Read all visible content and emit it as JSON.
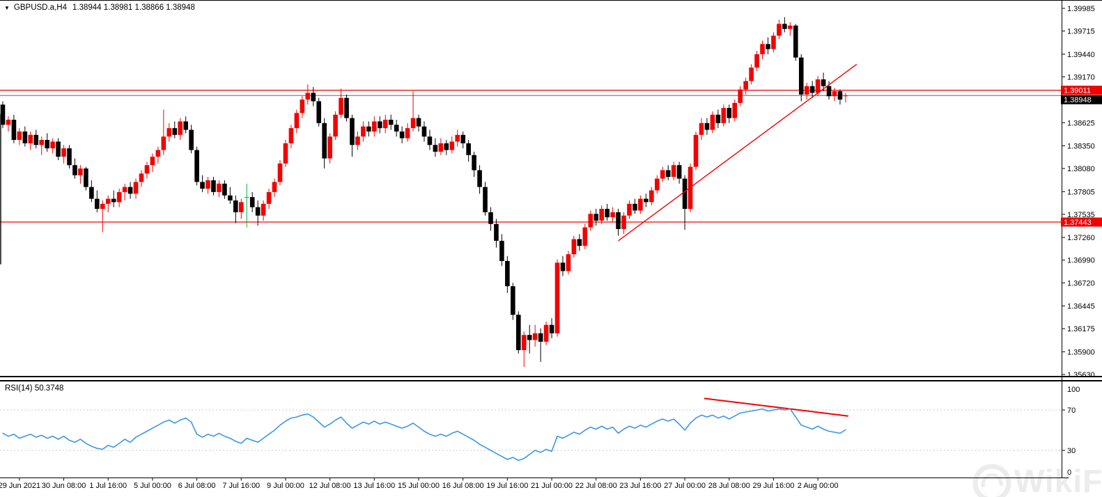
{
  "title_bar": {
    "dropdown_icon": "▼",
    "symbol": "GBPUSD.a,H4",
    "ohlc": "1.38944 1.38981 1.38866 1.38948"
  },
  "rsi_panel": {
    "label": "RSI(14) 50.3748"
  },
  "watermark": {
    "text": "WikiFX"
  },
  "colors": {
    "bull": "#f40000",
    "bear": "#000000",
    "special_green": "#00b32c",
    "level_red": "#f40000",
    "current_price_line": "#808080",
    "current_price_badge": "#000000",
    "badge_text": "#ffffff",
    "rsi_line": "#3d95e8",
    "rsi_grid": "#c8c8c8",
    "trend": "#f40000",
    "axis_text": "#000000",
    "border": "#000000",
    "watermark": "#ececec"
  },
  "chart_data": {
    "type": "candlestick",
    "symbol": "GBPUSD.a",
    "timeframe": "H4",
    "last_ohlc": {
      "open": "1.38944",
      "high": "1.38981",
      "low": "1.38866",
      "close": "1.38948"
    },
    "price_axis_ticks": [
      "1.39985",
      "1.39715",
      "1.39440",
      "1.39170",
      "1.38895",
      "1.38625",
      "1.38350",
      "1.38080",
      "1.37805",
      "1.37535",
      "1.37260",
      "1.36990",
      "1.36720",
      "1.36445",
      "1.36175",
      "1.35900",
      "1.35630"
    ],
    "x_axis_labels": [
      {
        "bar": 3,
        "text": "29 Jun 2021"
      },
      {
        "bar": 11,
        "text": "30 Jun 08:00"
      },
      {
        "bar": 19,
        "text": "1 Jul 16:00"
      },
      {
        "bar": 27,
        "text": "5 Jul 00:00"
      },
      {
        "bar": 35,
        "text": "6 Jul 08:00"
      },
      {
        "bar": 43,
        "text": "7 Jul 16:00"
      },
      {
        "bar": 51,
        "text": "9 Jul 00:00"
      },
      {
        "bar": 59,
        "text": "12 Jul 08:00"
      },
      {
        "bar": 67,
        "text": "13 Jul 16:00"
      },
      {
        "bar": 75,
        "text": "15 Jul 00:00"
      },
      {
        "bar": 83,
        "text": "16 Jul 08:00"
      },
      {
        "bar": 91,
        "text": "19 Jul 16:00"
      },
      {
        "bar": 99,
        "text": "21 Jul 00:00"
      },
      {
        "bar": 107,
        "text": "22 Jul 08:00"
      },
      {
        "bar": 115,
        "text": "23 Jul 16:00"
      },
      {
        "bar": 123,
        "text": "27 Jul 00:00"
      },
      {
        "bar": 131,
        "text": "28 Jul 08:00"
      },
      {
        "bar": 139,
        "text": "29 Jul 16:00"
      },
      {
        "bar": 147,
        "text": "2 Aug 00:00"
      }
    ],
    "green_candle_index": 44,
    "left_edge_wick": {
      "price_top": 1.3873,
      "price_bottom": 1.3694
    },
    "levels": [
      {
        "name": "resistance",
        "price": 1.39011,
        "label": "1.39011",
        "color": "#f40000",
        "badge": true,
        "badge_fill": "#f40000",
        "badge_dy": 0
      },
      {
        "name": "current-price",
        "price": 1.38948,
        "label": "1.38948",
        "color": "#808080",
        "badge": true,
        "badge_fill": "#000000",
        "badge_dy": 6
      },
      {
        "name": "support",
        "price": 1.37443,
        "label": "1.37443",
        "color": "#f40000",
        "badge": true,
        "badge_fill": "#f40000",
        "badge_dy": 0
      }
    ],
    "trendlines": [
      {
        "panel": "main",
        "x1_bar": 111,
        "y1_price": 1.3722,
        "x2_bar": 154,
        "y2_price": 1.3932,
        "color": "#f40000",
        "width": 1.4
      },
      {
        "panel": "rsi",
        "x1_bar": 126.5,
        "y1_value": 81.5,
        "x2_bar": 152.5,
        "y2_value": 64,
        "color": "#f40000",
        "width": 2
      }
    ],
    "candles": [
      [
        1.3884,
        1.3888,
        1.3856,
        1.386
      ],
      [
        1.386,
        1.387,
        1.3852,
        1.3866
      ],
      [
        1.3866,
        1.3872,
        1.3838,
        1.3842
      ],
      [
        1.3842,
        1.3856,
        1.3836,
        1.3852
      ],
      [
        1.3852,
        1.3858,
        1.3834,
        1.3838
      ],
      [
        1.3838,
        1.3852,
        1.383,
        1.3848
      ],
      [
        1.3848,
        1.3854,
        1.3832,
        1.3836
      ],
      [
        1.3836,
        1.3846,
        1.3824,
        1.3842
      ],
      [
        1.3842,
        1.385,
        1.3828,
        1.3832
      ],
      [
        1.3832,
        1.3844,
        1.3826,
        1.384
      ],
      [
        1.384,
        1.3844,
        1.3818,
        1.3822
      ],
      [
        1.3822,
        1.3836,
        1.3814,
        1.3832
      ],
      [
        1.3832,
        1.3836,
        1.3808,
        1.3812
      ],
      [
        1.3812,
        1.382,
        1.3796,
        1.38
      ],
      [
        1.38,
        1.3812,
        1.379,
        1.3808
      ],
      [
        1.3808,
        1.381,
        1.3782,
        1.3786
      ],
      [
        1.3786,
        1.3794,
        1.3768,
        1.3772
      ],
      [
        1.3772,
        1.3782,
        1.3756,
        1.376
      ],
      [
        1.376,
        1.377,
        1.3732,
        1.3766
      ],
      [
        1.3766,
        1.3776,
        1.3756,
        1.3772
      ],
      [
        1.3772,
        1.3782,
        1.3762,
        1.3768
      ],
      [
        1.3768,
        1.3784,
        1.3762,
        1.378
      ],
      [
        1.378,
        1.379,
        1.377,
        1.3786
      ],
      [
        1.3786,
        1.3792,
        1.3772,
        1.3778
      ],
      [
        1.3778,
        1.3796,
        1.3772,
        1.3792
      ],
      [
        1.3792,
        1.3806,
        1.3786,
        1.3802
      ],
      [
        1.3802,
        1.3816,
        1.3796,
        1.3812
      ],
      [
        1.3812,
        1.3826,
        1.3804,
        1.3822
      ],
      [
        1.3822,
        1.3834,
        1.3814,
        1.383
      ],
      [
        1.383,
        1.3878,
        1.3824,
        1.3846
      ],
      [
        1.3846,
        1.3862,
        1.384,
        1.3856
      ],
      [
        1.3856,
        1.3864,
        1.3844,
        1.3848
      ],
      [
        1.3848,
        1.3868,
        1.3842,
        1.3864
      ],
      [
        1.3864,
        1.387,
        1.385,
        1.3854
      ],
      [
        1.3854,
        1.386,
        1.3826,
        1.383
      ],
      [
        1.383,
        1.3834,
        1.3788,
        1.3792
      ],
      [
        1.3792,
        1.38,
        1.378,
        1.3784
      ],
      [
        1.3784,
        1.3798,
        1.3778,
        1.3794
      ],
      [
        1.3794,
        1.3798,
        1.3776,
        1.378
      ],
      [
        1.378,
        1.3794,
        1.3774,
        1.379
      ],
      [
        1.379,
        1.3794,
        1.3772,
        1.3776
      ],
      [
        1.3776,
        1.3786,
        1.3766,
        1.377
      ],
      [
        1.377,
        1.3776,
        1.3743,
        1.3756
      ],
      [
        1.3756,
        1.3772,
        1.3748,
        1.3768
      ],
      [
        1.3774,
        1.379,
        1.3738,
        1.3774
      ],
      [
        1.3774,
        1.378,
        1.3756,
        1.3762
      ],
      [
        1.3762,
        1.377,
        1.374,
        1.3752
      ],
      [
        1.3752,
        1.377,
        1.3746,
        1.3766
      ],
      [
        1.3766,
        1.3784,
        1.376,
        1.378
      ],
      [
        1.378,
        1.3796,
        1.3774,
        1.3792
      ],
      [
        1.3792,
        1.3818,
        1.3788,
        1.3814
      ],
      [
        1.3814,
        1.3842,
        1.381,
        1.3838
      ],
      [
        1.3838,
        1.386,
        1.3832,
        1.3856
      ],
      [
        1.3856,
        1.3878,
        1.385,
        1.3874
      ],
      [
        1.3874,
        1.3894,
        1.3868,
        1.389
      ],
      [
        1.389,
        1.3908,
        1.3884,
        1.3898
      ],
      [
        1.3898,
        1.3905,
        1.3882,
        1.3888
      ],
      [
        1.3888,
        1.3892,
        1.3858,
        1.3862
      ],
      [
        1.3862,
        1.3868,
        1.3808,
        1.382
      ],
      [
        1.382,
        1.385,
        1.3814,
        1.3846
      ],
      [
        1.3846,
        1.3876,
        1.3842,
        1.3872
      ],
      [
        1.3872,
        1.3903,
        1.3868,
        1.3892
      ],
      [
        1.3892,
        1.3896,
        1.3864,
        1.3868
      ],
      [
        1.3868,
        1.3872,
        1.3822,
        1.3836
      ],
      [
        1.3836,
        1.3852,
        1.383,
        1.3846
      ],
      [
        1.3846,
        1.3864,
        1.384,
        1.3858
      ],
      [
        1.3858,
        1.3864,
        1.3846,
        1.3852
      ],
      [
        1.3852,
        1.387,
        1.3846,
        1.3864
      ],
      [
        1.3864,
        1.387,
        1.385,
        1.3856
      ],
      [
        1.3856,
        1.3872,
        1.385,
        1.3866
      ],
      [
        1.3866,
        1.3872,
        1.3854,
        1.386
      ],
      [
        1.386,
        1.3866,
        1.3846,
        1.3852
      ],
      [
        1.3852,
        1.3858,
        1.3838,
        1.3844
      ],
      [
        1.3844,
        1.3862,
        1.384,
        1.3856
      ],
      [
        1.3856,
        1.39,
        1.3852,
        1.3868
      ],
      [
        1.3868,
        1.3872,
        1.3852,
        1.3858
      ],
      [
        1.3858,
        1.3864,
        1.384,
        1.3846
      ],
      [
        1.3846,
        1.3854,
        1.383,
        1.3836
      ],
      [
        1.3836,
        1.3844,
        1.3822,
        1.3828
      ],
      [
        1.3828,
        1.3844,
        1.3824,
        1.3838
      ],
      [
        1.3838,
        1.3842,
        1.3824,
        1.383
      ],
      [
        1.383,
        1.3846,
        1.3826,
        1.384
      ],
      [
        1.384,
        1.3854,
        1.3834,
        1.3848
      ],
      [
        1.3848,
        1.3852,
        1.3832,
        1.3838
      ],
      [
        1.3838,
        1.3842,
        1.3816,
        1.3824
      ],
      [
        1.3824,
        1.3828,
        1.3798,
        1.3806
      ],
      [
        1.3806,
        1.3812,
        1.3778,
        1.3786
      ],
      [
        1.3786,
        1.3792,
        1.3752,
        1.3756
      ],
      [
        1.3756,
        1.3762,
        1.3734,
        1.3742
      ],
      [
        1.3742,
        1.3748,
        1.3714,
        1.3722
      ],
      [
        1.3722,
        1.373,
        1.3692,
        1.3698
      ],
      [
        1.3698,
        1.3704,
        1.366,
        1.3668
      ],
      [
        1.3668,
        1.3672,
        1.3628,
        1.3634
      ],
      [
        1.3634,
        1.3638,
        1.3588,
        1.3592
      ],
      [
        1.3592,
        1.3614,
        1.3572,
        1.361
      ],
      [
        1.361,
        1.3622,
        1.3588,
        1.3604
      ],
      [
        1.3604,
        1.3622,
        1.3596,
        1.3612
      ],
      [
        1.3612,
        1.3618,
        1.3578,
        1.3602
      ],
      [
        1.3602,
        1.3626,
        1.3598,
        1.3622
      ],
      [
        1.3622,
        1.363,
        1.3606,
        1.3612
      ],
      [
        1.3612,
        1.37,
        1.3608,
        1.3696
      ],
      [
        1.3696,
        1.3704,
        1.368,
        1.3686
      ],
      [
        1.3686,
        1.371,
        1.3682,
        1.3706
      ],
      [
        1.3706,
        1.3728,
        1.3702,
        1.3724
      ],
      [
        1.3724,
        1.373,
        1.371,
        1.3716
      ],
      [
        1.3716,
        1.3742,
        1.3712,
        1.3738
      ],
      [
        1.3738,
        1.3758,
        1.3734,
        1.3754
      ],
      [
        1.3754,
        1.376,
        1.374,
        1.3746
      ],
      [
        1.3746,
        1.3764,
        1.3742,
        1.376
      ],
      [
        1.376,
        1.3766,
        1.3746,
        1.375
      ],
      [
        1.375,
        1.3762,
        1.3744,
        1.3756
      ],
      [
        1.3756,
        1.376,
        1.3728,
        1.3736
      ],
      [
        1.3736,
        1.3756,
        1.373,
        1.3752
      ],
      [
        1.3752,
        1.377,
        1.3748,
        1.3766
      ],
      [
        1.3766,
        1.3772,
        1.3754,
        1.3758
      ],
      [
        1.3758,
        1.3776,
        1.3754,
        1.3772
      ],
      [
        1.3772,
        1.3778,
        1.3762,
        1.3768
      ],
      [
        1.3768,
        1.3786,
        1.3764,
        1.3782
      ],
      [
        1.3782,
        1.38,
        1.3778,
        1.3796
      ],
      [
        1.3796,
        1.381,
        1.3792,
        1.3806
      ],
      [
        1.3806,
        1.3812,
        1.3794,
        1.3798
      ],
      [
        1.3798,
        1.3816,
        1.3794,
        1.3812
      ],
      [
        1.3812,
        1.3816,
        1.379,
        1.3796
      ],
      [
        1.3796,
        1.38,
        1.3735,
        1.376
      ],
      [
        1.376,
        1.3814,
        1.3756,
        1.381
      ],
      [
        1.381,
        1.3852,
        1.3806,
        1.3848
      ],
      [
        1.3848,
        1.3868,
        1.3842,
        1.3862
      ],
      [
        1.3862,
        1.3868,
        1.3848,
        1.3854
      ],
      [
        1.3854,
        1.3876,
        1.385,
        1.3872
      ],
      [
        1.3872,
        1.3878,
        1.3856,
        1.3862
      ],
      [
        1.3862,
        1.3884,
        1.3858,
        1.388
      ],
      [
        1.388,
        1.3884,
        1.3862,
        1.3868
      ],
      [
        1.3868,
        1.389,
        1.3864,
        1.3886
      ],
      [
        1.3886,
        1.3906,
        1.3882,
        1.3902
      ],
      [
        1.3902,
        1.3916,
        1.3896,
        1.3912
      ],
      [
        1.3912,
        1.3932,
        1.3908,
        1.3928
      ],
      [
        1.3928,
        1.3948,
        1.3924,
        1.3944
      ],
      [
        1.3944,
        1.396,
        1.3938,
        1.3956
      ],
      [
        1.3956,
        1.3964,
        1.3944,
        1.395
      ],
      [
        1.395,
        1.397,
        1.3946,
        1.3966
      ],
      [
        1.3966,
        1.3985,
        1.3962,
        1.398
      ],
      [
        1.398,
        1.3988,
        1.397,
        1.3974
      ],
      [
        1.3974,
        1.3982,
        1.3966,
        1.3978
      ],
      [
        1.3978,
        1.398,
        1.3936,
        1.394
      ],
      [
        1.394,
        1.3944,
        1.3888,
        1.3896
      ],
      [
        1.3896,
        1.391,
        1.389,
        1.3906
      ],
      [
        1.3906,
        1.3912,
        1.3892,
        1.3898
      ],
      [
        1.3898,
        1.3918,
        1.3894,
        1.3914
      ],
      [
        1.3914,
        1.3922,
        1.39,
        1.3906
      ],
      [
        1.3906,
        1.3912,
        1.389,
        1.3894
      ],
      [
        1.3894,
        1.3904,
        1.3888,
        1.39
      ],
      [
        1.39,
        1.3902,
        1.3884,
        1.389
      ],
      [
        1.38944,
        1.38981,
        1.38866,
        1.38948
      ]
    ],
    "rsi": {
      "period": 14,
      "current": "50.3748",
      "axis_labels": [
        "100",
        "70",
        "30",
        "0"
      ],
      "grid_levels": [
        70,
        30
      ],
      "values": [
        47,
        44,
        46,
        42,
        44,
        46,
        43,
        45,
        42,
        44,
        41,
        44,
        40,
        38,
        41,
        37,
        34,
        32,
        31,
        35,
        33,
        37,
        41,
        38,
        43,
        46,
        49,
        52,
        55,
        58,
        60,
        57,
        60,
        62,
        58,
        46,
        43,
        46,
        44,
        47,
        44,
        42,
        39,
        37,
        42,
        40,
        38,
        42,
        46,
        50,
        55,
        59,
        62,
        63,
        65,
        66,
        63,
        58,
        53,
        56,
        60,
        63,
        57,
        52,
        55,
        58,
        56,
        59,
        56,
        58,
        56,
        54,
        52,
        54,
        57,
        53,
        49,
        46,
        44,
        46,
        44,
        47,
        49,
        46,
        43,
        40,
        36,
        33,
        30,
        27,
        24,
        21,
        23,
        20,
        22,
        26,
        30,
        28,
        31,
        29,
        44,
        42,
        45,
        48,
        46,
        50,
        53,
        51,
        54,
        51,
        53,
        47,
        51,
        54,
        52,
        55,
        53,
        56,
        59,
        61,
        59,
        61,
        56,
        50,
        57,
        62,
        65,
        63,
        65,
        62,
        64,
        61,
        64,
        67,
        68,
        69,
        70,
        71,
        69,
        70,
        71,
        70,
        71,
        63,
        55,
        53,
        51,
        54,
        51,
        49,
        48,
        47,
        50.37
      ]
    }
  }
}
